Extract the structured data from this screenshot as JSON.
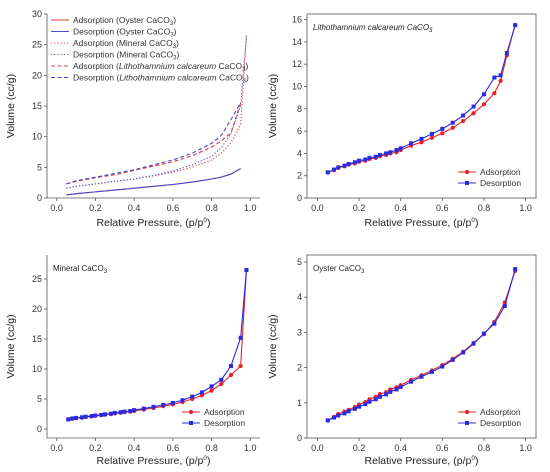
{
  "chart_data": [
    {
      "type": "line",
      "title": "",
      "xlabel": "Relative Pressure, (p/p",
      "xlabel_sup": "0",
      "xlabel_tail": ")",
      "ylabel": "Volume (cc/g)",
      "xlim": [
        -0.05,
        1.05
      ],
      "ylim": [
        0,
        30
      ],
      "xticks": [
        0.0,
        0.2,
        0.4,
        0.6,
        0.8,
        1.0
      ],
      "xtick_labels": [
        "0.0",
        "0.2",
        "0.4",
        "0.6",
        "0.8",
        "1.0"
      ],
      "yticks": [
        0,
        5,
        10,
        15,
        20,
        25,
        30
      ],
      "ytick_labels": [
        "0",
        "5",
        "10",
        "15",
        "20",
        "25",
        "30"
      ],
      "grid": false,
      "legend": "top-left",
      "series": [
        {
          "name": "Adsorption (Oyster CaCO",
          "name_sub": "3",
          "name_tail": ")",
          "color": "#e03c3c",
          "dash": "solid",
          "x": [
            0.05,
            0.1,
            0.2,
            0.3,
            0.4,
            0.5,
            0.6,
            0.7,
            0.8,
            0.85,
            0.9,
            0.95
          ],
          "y": [
            0.5,
            0.7,
            1.0,
            1.3,
            1.6,
            1.9,
            2.2,
            2.6,
            3.1,
            3.4,
            3.9,
            4.8
          ]
        },
        {
          "name": "Desorption (Oyster CaCO",
          "name_sub": "3",
          "name_tail": ")",
          "color": "#4a4ad0",
          "dash": "solid",
          "x": [
            0.05,
            0.1,
            0.2,
            0.3,
            0.4,
            0.5,
            0.6,
            0.7,
            0.8,
            0.85,
            0.9,
            0.95
          ],
          "y": [
            0.5,
            0.7,
            1.0,
            1.3,
            1.6,
            1.9,
            2.2,
            2.6,
            3.1,
            3.4,
            3.9,
            4.8
          ]
        },
        {
          "name": "Adsorption (Mineral CaCO",
          "name_sub": "3",
          "name_tail": ")",
          "color": "#e03c3c",
          "dash": "dot",
          "x": [
            0.05,
            0.1,
            0.2,
            0.3,
            0.4,
            0.5,
            0.6,
            0.7,
            0.8,
            0.85,
            0.9,
            0.95,
            0.98
          ],
          "y": [
            1.6,
            1.9,
            2.3,
            2.7,
            3.1,
            3.6,
            4.2,
            5.0,
            6.2,
            7.3,
            9.0,
            12.0,
            26.5
          ]
        },
        {
          "name": "Desorption (Mineral CaCO",
          "name_sub": "3",
          "name_tail": ")",
          "color": "#4a4ad0",
          "dash": "dot",
          "x": [
            0.05,
            0.1,
            0.2,
            0.3,
            0.4,
            0.5,
            0.6,
            0.7,
            0.8,
            0.85,
            0.9,
            0.95,
            0.98
          ],
          "y": [
            1.6,
            1.9,
            2.3,
            2.7,
            3.1,
            3.7,
            4.4,
            5.4,
            6.8,
            8.2,
            10.5,
            15.0,
            26.5
          ]
        },
        {
          "name": "Adsorption (",
          "name_italic": "Lithothamnium calcareum",
          "name_after": " CaCO",
          "name_sub": "3",
          "name_tail": ")",
          "color": "#e03c3c",
          "dash": "dash",
          "x": [
            0.05,
            0.1,
            0.2,
            0.3,
            0.4,
            0.5,
            0.6,
            0.7,
            0.8,
            0.85,
            0.9,
            0.95
          ],
          "y": [
            2.3,
            2.7,
            3.3,
            3.8,
            4.5,
            5.2,
            5.9,
            6.9,
            8.3,
            9.3,
            10.6,
            15.5
          ]
        },
        {
          "name": "Desorption (",
          "name_italic": "Lithothamnium calcareum",
          "name_after": " CaCO",
          "name_sub": "3",
          "name_tail": ")",
          "color": "#4a4ad0",
          "dash": "dash",
          "x": [
            0.05,
            0.1,
            0.2,
            0.3,
            0.4,
            0.5,
            0.6,
            0.7,
            0.8,
            0.85,
            0.9,
            0.95
          ],
          "y": [
            2.3,
            2.8,
            3.4,
            4.0,
            4.6,
            5.4,
            6.2,
            7.3,
            8.9,
            10.2,
            12.8,
            15.5
          ]
        }
      ]
    },
    {
      "type": "line",
      "title": "Lithothamnium calcareum CaCO",
      "title_sub": "3",
      "title_italic": true,
      "xlabel": "Relative Pressure, (p/p",
      "xlabel_sup": "0",
      "xlabel_tail": ")",
      "ylabel": "Volume (cc/g)",
      "xlim": [
        -0.05,
        1.05
      ],
      "ylim": [
        0,
        16.5
      ],
      "xticks": [
        0.0,
        0.2,
        0.4,
        0.6,
        0.8,
        1.0
      ],
      "xtick_labels": [
        "0.0",
        "0.2",
        "0.4",
        "0.6",
        "0.8",
        "1.0"
      ],
      "yticks": [
        0,
        2,
        4,
        6,
        8,
        10,
        12,
        14,
        16
      ],
      "ytick_labels": [
        "0",
        "2",
        "4",
        "6",
        "8",
        "10",
        "12",
        "14",
        "16"
      ],
      "grid": false,
      "legend": "bottom-right",
      "series": [
        {
          "name": "Adsorption",
          "color": "#e8202a",
          "marker": "circle",
          "x": [
            0.05,
            0.08,
            0.1,
            0.13,
            0.15,
            0.18,
            0.2,
            0.23,
            0.25,
            0.28,
            0.3,
            0.33,
            0.35,
            0.38,
            0.4,
            0.45,
            0.5,
            0.55,
            0.6,
            0.65,
            0.7,
            0.75,
            0.8,
            0.85,
            0.88,
            0.91,
            0.95
          ],
          "y": [
            2.3,
            2.5,
            2.7,
            2.85,
            3.0,
            3.1,
            3.25,
            3.35,
            3.5,
            3.6,
            3.75,
            3.85,
            4.0,
            4.1,
            4.3,
            4.7,
            5.0,
            5.4,
            5.8,
            6.3,
            6.9,
            7.6,
            8.4,
            9.4,
            10.5,
            12.8,
            15.5
          ]
        },
        {
          "name": "Desorption",
          "color": "#2a2ae0",
          "marker": "square",
          "x": [
            0.05,
            0.08,
            0.1,
            0.13,
            0.15,
            0.18,
            0.2,
            0.23,
            0.25,
            0.28,
            0.3,
            0.33,
            0.35,
            0.38,
            0.4,
            0.45,
            0.5,
            0.55,
            0.6,
            0.65,
            0.7,
            0.75,
            0.8,
            0.85,
            0.88,
            0.91,
            0.95
          ],
          "y": [
            2.3,
            2.55,
            2.75,
            2.9,
            3.05,
            3.2,
            3.35,
            3.45,
            3.6,
            3.7,
            3.85,
            4.0,
            4.1,
            4.3,
            4.45,
            4.9,
            5.3,
            5.75,
            6.2,
            6.75,
            7.4,
            8.2,
            9.3,
            10.8,
            11.0,
            13.0,
            15.5
          ]
        }
      ]
    },
    {
      "type": "line",
      "title": "Mineral CaCO",
      "title_sub": "3",
      "title_italic": false,
      "xlabel": "Relative Pressure, (p/p",
      "xlabel_sup": "0",
      "xlabel_tail": ")",
      "ylabel": "Volume (cc/g)",
      "xlim": [
        -0.05,
        1.05
      ],
      "ylim": [
        -1.5,
        29
      ],
      "xticks": [
        0.0,
        0.2,
        0.4,
        0.6,
        0.8,
        1.0
      ],
      "xtick_labels": [
        "0.0",
        "0.2",
        "0.4",
        "0.6",
        "0.8",
        "1.0"
      ],
      "yticks": [
        0,
        5,
        10,
        15,
        20,
        25
      ],
      "ytick_labels": [
        "0",
        "5",
        "10",
        "15",
        "20",
        "25"
      ],
      "grid": false,
      "legend": "bottom-right",
      "series": [
        {
          "name": "Adsorption",
          "color": "#e8202a",
          "marker": "circle",
          "x": [
            0.06,
            0.08,
            0.1,
            0.13,
            0.15,
            0.18,
            0.2,
            0.23,
            0.25,
            0.28,
            0.3,
            0.33,
            0.35,
            0.38,
            0.4,
            0.45,
            0.5,
            0.55,
            0.6,
            0.65,
            0.7,
            0.75,
            0.8,
            0.85,
            0.9,
            0.95,
            0.98
          ],
          "y": [
            1.6,
            1.7,
            1.8,
            1.9,
            2.0,
            2.1,
            2.2,
            2.3,
            2.4,
            2.5,
            2.6,
            2.7,
            2.8,
            2.9,
            3.0,
            3.25,
            3.5,
            3.8,
            4.1,
            4.5,
            5.0,
            5.6,
            6.4,
            7.5,
            9.0,
            10.5,
            26.5
          ]
        },
        {
          "name": "Desorption",
          "color": "#2a2ae0",
          "marker": "square",
          "x": [
            0.06,
            0.08,
            0.1,
            0.13,
            0.15,
            0.18,
            0.2,
            0.23,
            0.25,
            0.28,
            0.3,
            0.33,
            0.35,
            0.38,
            0.4,
            0.45,
            0.5,
            0.55,
            0.6,
            0.65,
            0.7,
            0.75,
            0.8,
            0.85,
            0.9,
            0.95,
            0.98
          ],
          "y": [
            1.6,
            1.75,
            1.85,
            1.95,
            2.05,
            2.15,
            2.25,
            2.35,
            2.45,
            2.55,
            2.7,
            2.8,
            2.9,
            3.0,
            3.15,
            3.4,
            3.7,
            4.0,
            4.35,
            4.8,
            5.4,
            6.1,
            7.1,
            8.2,
            10.5,
            15.2,
            26.5
          ]
        }
      ]
    },
    {
      "type": "line",
      "title": "Oyster CaCO",
      "title_sub": "3",
      "title_italic": false,
      "xlabel": "Relative Pressure, (p/p",
      "xlabel_sup": "0",
      "xlabel_tail": ")",
      "ylabel": "Volume (cc/g)",
      "xlim": [
        -0.05,
        1.05
      ],
      "ylim": [
        0,
        5.2
      ],
      "xticks": [
        0.0,
        0.2,
        0.4,
        0.6,
        0.8,
        1.0
      ],
      "xtick_labels": [
        "0.0",
        "0.2",
        "0.4",
        "0.6",
        "0.8",
        "1.0"
      ],
      "yticks": [
        0,
        1,
        2,
        3,
        4,
        5
      ],
      "ytick_labels": [
        "0",
        "1",
        "2",
        "3",
        "4",
        "5"
      ],
      "grid": false,
      "legend": "bottom-right",
      "series": [
        {
          "name": "Adsorption",
          "color": "#e8202a",
          "marker": "circle",
          "x": [
            0.05,
            0.08,
            0.1,
            0.13,
            0.15,
            0.18,
            0.2,
            0.23,
            0.25,
            0.28,
            0.3,
            0.33,
            0.35,
            0.38,
            0.4,
            0.45,
            0.5,
            0.55,
            0.6,
            0.65,
            0.7,
            0.75,
            0.8,
            0.85,
            0.9,
            0.95
          ],
          "y": [
            0.5,
            0.6,
            0.68,
            0.75,
            0.8,
            0.88,
            0.95,
            1.02,
            1.1,
            1.17,
            1.25,
            1.3,
            1.38,
            1.44,
            1.5,
            1.65,
            1.78,
            1.92,
            2.07,
            2.25,
            2.45,
            2.7,
            2.95,
            3.3,
            3.85,
            4.75
          ]
        },
        {
          "name": "Desorption",
          "color": "#2a2ae0",
          "marker": "square",
          "x": [
            0.05,
            0.08,
            0.1,
            0.13,
            0.15,
            0.18,
            0.2,
            0.23,
            0.25,
            0.28,
            0.3,
            0.33,
            0.35,
            0.38,
            0.4,
            0.45,
            0.5,
            0.55,
            0.6,
            0.65,
            0.7,
            0.75,
            0.8,
            0.85,
            0.9,
            0.95
          ],
          "y": [
            0.5,
            0.58,
            0.64,
            0.7,
            0.76,
            0.83,
            0.89,
            0.96,
            1.03,
            1.1,
            1.17,
            1.24,
            1.31,
            1.38,
            1.45,
            1.6,
            1.74,
            1.88,
            2.03,
            2.22,
            2.43,
            2.68,
            2.97,
            3.25,
            3.75,
            4.8
          ]
        }
      ]
    }
  ]
}
